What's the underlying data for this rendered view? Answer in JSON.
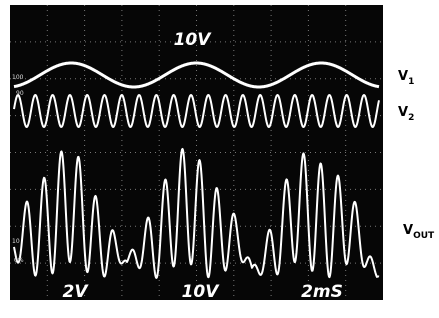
{
  "screen": {
    "top_label": "10V",
    "markers": [
      "100",
      "90",
      "10",
      "0%"
    ],
    "bottom_labels": [
      "2V",
      "10V",
      "2mS"
    ]
  },
  "signals": [
    {
      "name": "V",
      "subscript": "1"
    },
    {
      "name": "V",
      "subscript": "2"
    },
    {
      "name": "V",
      "subscript": "OUT"
    }
  ]
}
